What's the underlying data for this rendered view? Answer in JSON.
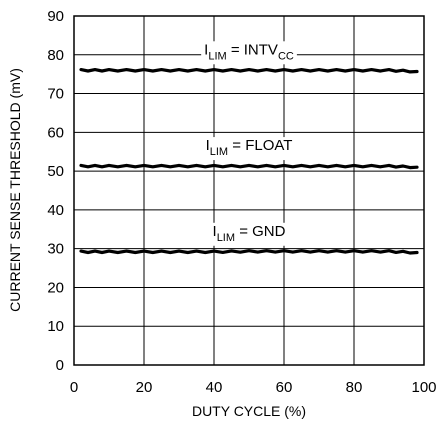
{
  "chart_data": {
    "type": "line",
    "xlabel": "DUTY CYCLE (%)",
    "ylabel": "CURRENT SENSE THRESHOLD (mV)",
    "xlim": [
      0,
      100
    ],
    "ylim": [
      0,
      90
    ],
    "x_ticks": [
      "0",
      "20",
      "40",
      "60",
      "80",
      "100"
    ],
    "y_ticks": [
      "0",
      "10",
      "20",
      "30",
      "40",
      "50",
      "60",
      "70",
      "80",
      "90"
    ],
    "grid": true,
    "x": [
      2,
      10,
      20,
      30,
      40,
      50,
      60,
      70,
      80,
      90,
      98
    ],
    "series": [
      {
        "values": [
          76,
          76,
          76,
          76,
          76,
          76,
          76,
          76,
          76,
          76,
          75.7
        ],
        "label": {
          "main": "I",
          "sub": "LIM",
          "eq": " = INTV",
          "sub2": "CC"
        }
      },
      {
        "values": [
          51.3,
          51.3,
          51.3,
          51.3,
          51.3,
          51.3,
          51.3,
          51.3,
          51.3,
          51.3,
          51.0
        ],
        "label": {
          "main": "I",
          "sub": "LIM",
          "eq": " = FLOAT",
          "sub2": ""
        }
      },
      {
        "values": [
          29.2,
          29.2,
          29.2,
          29.2,
          29.2,
          29.3,
          29.3,
          29.3,
          29.3,
          29.3,
          29.0
        ],
        "label": {
          "main": "I",
          "sub": "LIM",
          "eq": " = GND",
          "sub2": ""
        }
      }
    ]
  }
}
